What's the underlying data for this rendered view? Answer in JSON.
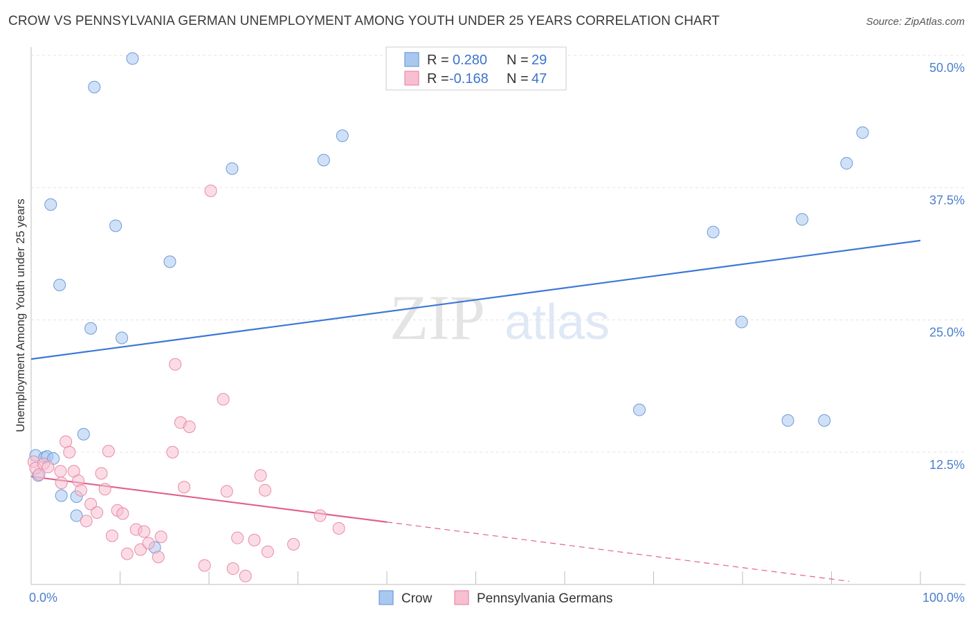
{
  "title": "CROW VS PENNSYLVANIA GERMAN UNEMPLOYMENT AMONG YOUTH UNDER 25 YEARS CORRELATION CHART",
  "source": "Source: ZipAtlas.com",
  "watermark": {
    "zip": "ZIP",
    "atlas": "atlas"
  },
  "legend": {
    "rows": [
      {
        "r_label": "R =",
        "r_value": "0.280",
        "n_label": "N =",
        "n_value": "29",
        "color": "#a9c8f0",
        "stroke": "#6b9ad8"
      },
      {
        "r_label": "R =",
        "r_value": "-0.168",
        "n_label": "N =",
        "n_value": "47",
        "color": "#f7bfd0",
        "stroke": "#e88aa8"
      }
    ]
  },
  "bottom_legend": [
    {
      "label": "Crow",
      "color": "#a9c8f0",
      "stroke": "#6b9ad8"
    },
    {
      "label": "Pennsylvania Germans",
      "color": "#f7bfd0",
      "stroke": "#e88aa8"
    }
  ],
  "chart_data": {
    "type": "scatter",
    "title": "CROW VS PENNSYLVANIA GERMAN UNEMPLOYMENT AMONG YOUTH UNDER 25 YEARS CORRELATION CHART",
    "xlabel": "",
    "ylabel": "Unemployment Among Youth under 25 years",
    "xlim": [
      0,
      100
    ],
    "ylim": [
      0,
      50
    ],
    "x_tick_labels": {
      "left": "0.0%",
      "right": "100.0%"
    },
    "y_ticks": [
      {
        "value": 12.5,
        "label": "12.5%"
      },
      {
        "value": 25.0,
        "label": "25.0%"
      },
      {
        "value": 37.5,
        "label": "37.5%"
      },
      {
        "value": 50.0,
        "label": "50.0%"
      }
    ],
    "series": [
      {
        "name": "Crow",
        "color": "#a9c8f0",
        "stroke": "#6b9ad8",
        "line_color": "#3a78d4",
        "trend": {
          "x0": 0,
          "y0": 21.3,
          "x1": 100,
          "y1": 32.5
        },
        "points": [
          [
            0.5,
            12.2
          ],
          [
            0.8,
            10.3
          ],
          [
            1.5,
            12.0
          ],
          [
            1.8,
            12.1
          ],
          [
            2.2,
            35.9
          ],
          [
            2.5,
            11.9
          ],
          [
            3.2,
            28.3
          ],
          [
            3.4,
            8.4
          ],
          [
            5.1,
            8.3
          ],
          [
            5.1,
            6.5
          ],
          [
            5.9,
            14.2
          ],
          [
            6.7,
            24.2
          ],
          [
            7.1,
            47.0
          ],
          [
            9.5,
            33.9
          ],
          [
            10.2,
            23.3
          ],
          [
            11.4,
            49.7
          ],
          [
            13.9,
            3.5
          ],
          [
            15.6,
            30.5
          ],
          [
            22.6,
            39.3
          ],
          [
            32.9,
            40.1
          ],
          [
            35.0,
            42.4
          ],
          [
            68.4,
            16.5
          ],
          [
            76.7,
            33.3
          ],
          [
            79.9,
            24.8
          ],
          [
            85.1,
            15.5
          ],
          [
            86.7,
            34.5
          ],
          [
            89.2,
            15.5
          ],
          [
            91.7,
            39.8
          ],
          [
            93.5,
            42.7
          ]
        ]
      },
      {
        "name": "Pennsylvania Germans",
        "color": "#f7bfd0",
        "stroke": "#e88aa8",
        "line_color": "#e0608a",
        "trend": {
          "x0": 0,
          "y0": 10.2,
          "x1": 40,
          "y1": 5.9
        },
        "trend_dashed": {
          "x0": 40,
          "y0": 5.9,
          "x1": 92,
          "y1": 0.3
        },
        "points": [
          [
            0.3,
            11.6
          ],
          [
            0.5,
            11.0
          ],
          [
            0.9,
            10.4
          ],
          [
            1.4,
            11.4
          ],
          [
            1.9,
            11.1
          ],
          [
            3.3,
            10.7
          ],
          [
            3.4,
            9.6
          ],
          [
            3.9,
            13.5
          ],
          [
            4.3,
            12.5
          ],
          [
            4.8,
            10.7
          ],
          [
            5.3,
            9.8
          ],
          [
            5.6,
            8.9
          ],
          [
            6.2,
            6.0
          ],
          [
            6.7,
            7.6
          ],
          [
            7.4,
            6.8
          ],
          [
            7.9,
            10.5
          ],
          [
            8.3,
            9.0
          ],
          [
            8.7,
            12.6
          ],
          [
            9.1,
            4.6
          ],
          [
            9.7,
            7.0
          ],
          [
            10.3,
            6.7
          ],
          [
            10.8,
            2.9
          ],
          [
            11.8,
            5.2
          ],
          [
            12.3,
            3.3
          ],
          [
            12.7,
            5.0
          ],
          [
            13.2,
            3.9
          ],
          [
            14.3,
            2.6
          ],
          [
            14.6,
            4.5
          ],
          [
            15.9,
            12.5
          ],
          [
            16.2,
            20.8
          ],
          [
            16.8,
            15.3
          ],
          [
            17.2,
            9.2
          ],
          [
            17.8,
            14.9
          ],
          [
            19.5,
            1.8
          ],
          [
            20.2,
            37.2
          ],
          [
            21.6,
            17.5
          ],
          [
            22.0,
            8.8
          ],
          [
            22.7,
            1.5
          ],
          [
            23.2,
            4.4
          ],
          [
            24.1,
            0.8
          ],
          [
            25.1,
            4.2
          ],
          [
            25.8,
            10.3
          ],
          [
            26.3,
            8.9
          ],
          [
            26.6,
            3.1
          ],
          [
            29.5,
            3.8
          ],
          [
            32.5,
            6.5
          ],
          [
            34.6,
            5.3
          ]
        ]
      }
    ]
  }
}
